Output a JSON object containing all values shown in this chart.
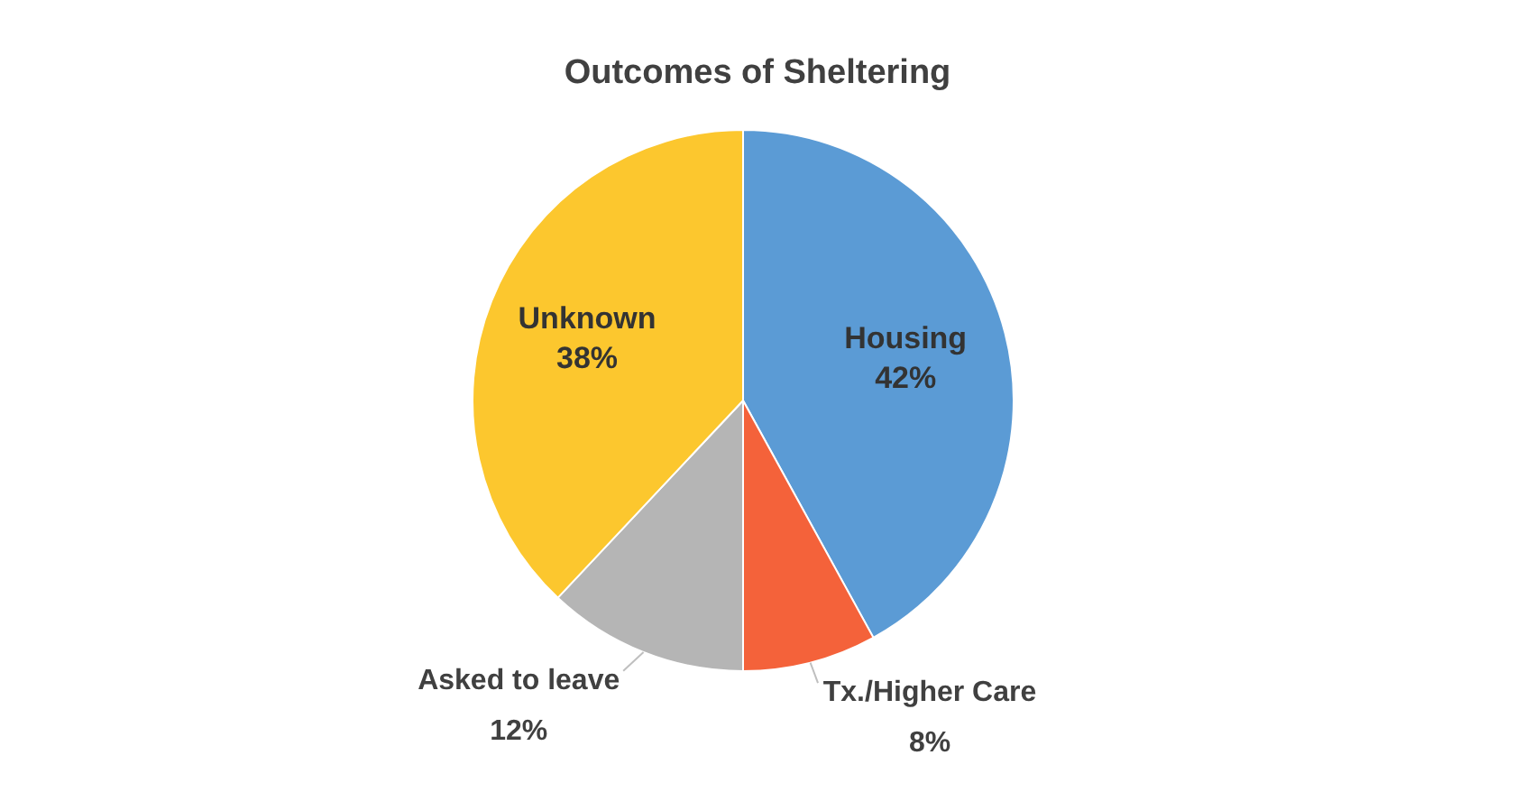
{
  "chart_data": {
    "type": "pie",
    "title": "Outcomes of Sheltering",
    "categories": [
      "Housing",
      "Tx./Higher Care",
      "Asked to leave",
      "Unknown"
    ],
    "values": [
      42,
      8,
      12,
      38
    ],
    "colors": [
      "#5b9bd5",
      "#f4623a",
      "#b5b5b5",
      "#fcc72e"
    ],
    "value_labels": [
      "42%",
      "8%",
      "12%",
      "38%"
    ]
  }
}
